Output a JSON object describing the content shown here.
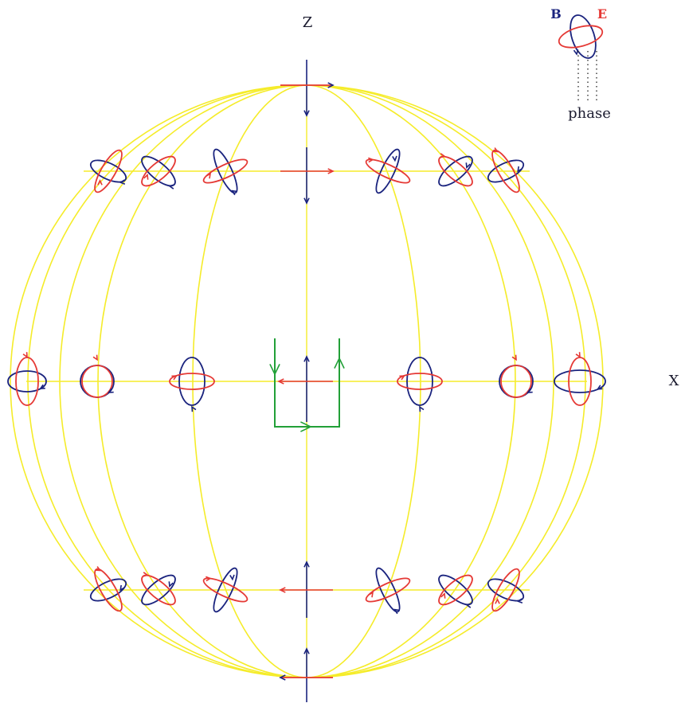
{
  "labels": {
    "z_axis": "Z",
    "x_axis": "X",
    "legend_b": "B",
    "legend_e": "E",
    "legend_phase": "phase"
  },
  "colors": {
    "grid": "#f5ec2a",
    "b_field": "#1a237e",
    "e_field": "#e53935",
    "loop": "#22a038",
    "text": "#1b1b2f"
  }
}
